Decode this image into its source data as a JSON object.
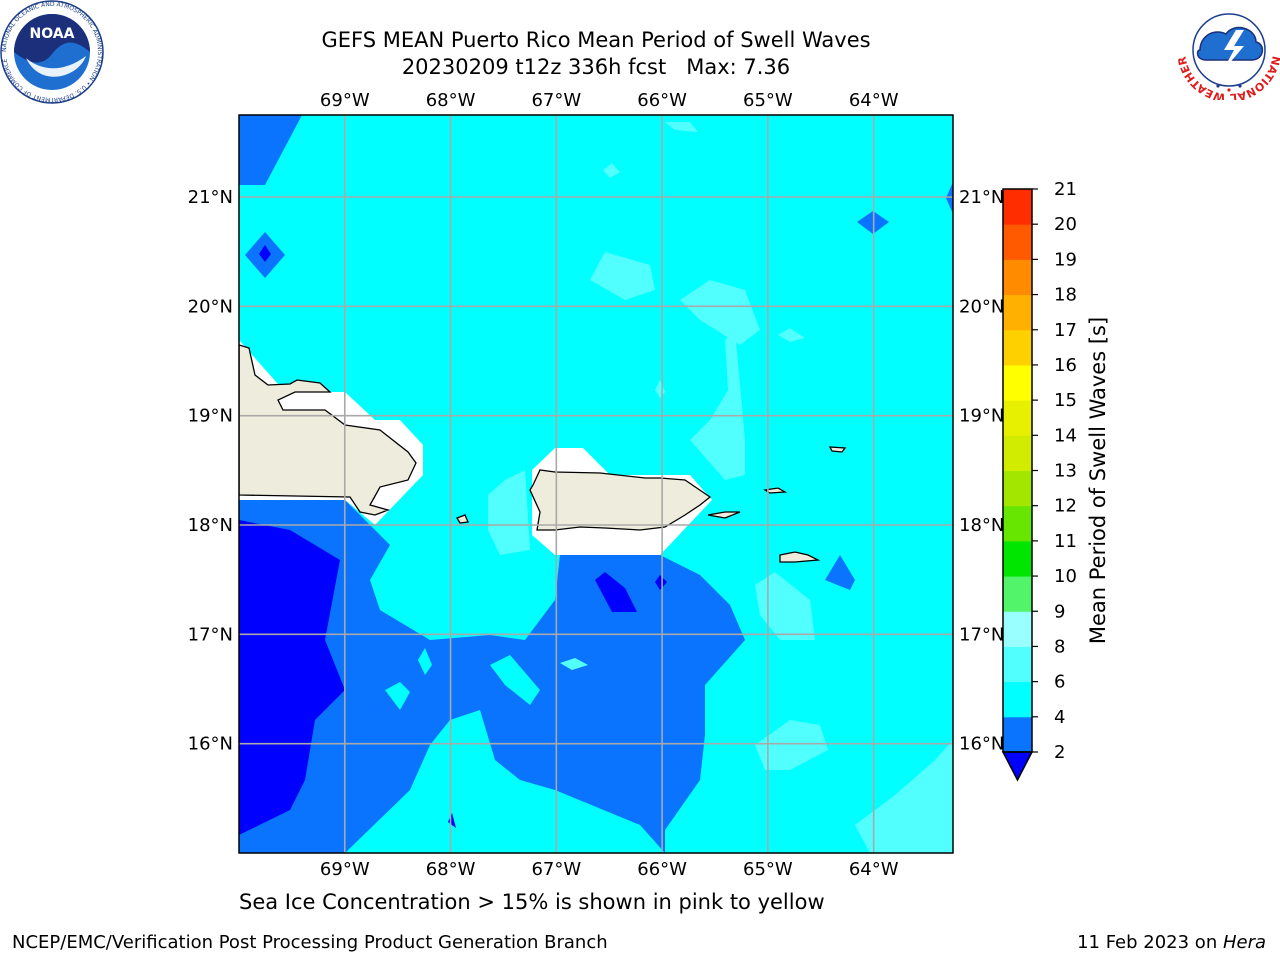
{
  "title": {
    "line1": "GEFS MEAN Puerto Rico Mean Period of Swell Waves",
    "line2": "20230209 t12z 336h fcst   Max: 7.36"
  },
  "map": {
    "lon_labels": [
      "69°W",
      "68°W",
      "67°W",
      "66°W",
      "65°W",
      "64°W"
    ],
    "lat_labels": [
      "21°N",
      "20°N",
      "19°N",
      "18°N",
      "17°N",
      "16°N"
    ],
    "extent": {
      "lon": [
        -70.0,
        -63.25
      ],
      "lat": [
        15.0,
        21.75
      ]
    }
  },
  "colorbar": {
    "label": "Mean Period of Swell Waves [s]",
    "ticks": [
      "2",
      "4",
      "6",
      "8",
      "9",
      "10",
      "11",
      "12",
      "13",
      "14",
      "15",
      "16",
      "17",
      "18",
      "19",
      "20",
      "21"
    ],
    "colors": [
      "#0a74ff",
      "#00ffff",
      "#52ffff",
      "#99ffff",
      "#52f56a",
      "#00e600",
      "#66e600",
      "#a3e600",
      "#d2ec00",
      "#e6f000",
      "#ffff00",
      "#ffd000",
      "#ffb000",
      "#ff8c00",
      "#ff5a00",
      "#ff2d00",
      "#ff0000"
    ],
    "under_color": "#0000ff"
  },
  "field_colors": {
    "band_2_4": "#0a74ff",
    "band_4_6": "#00ffff",
    "band_6_8": "#52ffff",
    "below_2": "#0000ff",
    "land": "#eeecdc",
    "masked": "#ffffff"
  },
  "logos": {
    "noaa": {
      "text": "NOAA",
      "ring": "NATIONAL OCEANIC AND ATMOSPHERIC ADMINISTRATION • U.S. DEPARTMENT OF COMMERCE"
    },
    "nws": {
      "ring": "NATIONAL WEATHER SERVICE"
    }
  },
  "footer": {
    "ice_note": "Sea Ice Concentration > 15% is shown in pink to yellow",
    "left": "NCEP/EMC/Verification Post Processing Product Generation Branch",
    "date": "11 Feb 2023 on ",
    "host": "Hera"
  }
}
